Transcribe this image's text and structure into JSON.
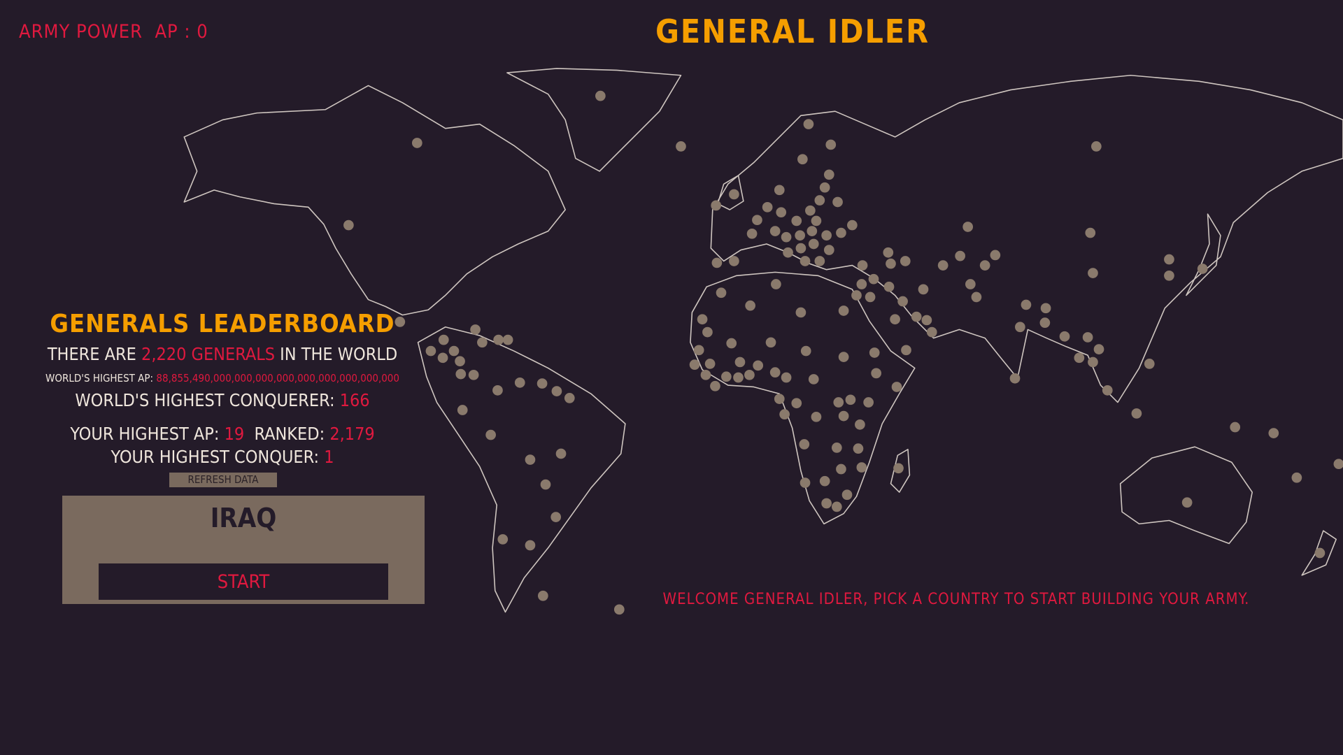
{
  "header": {
    "army_power_label": "ARMY POWER",
    "ap_label": "AP : 0",
    "game_title": "GENERAL IDLER"
  },
  "leaderboard": {
    "title": "GENERALS LEADERBOARD",
    "generals_prefix": "THERE ARE",
    "generals_count": "2,220 GENERALS",
    "generals_suffix": "IN THE WORLD",
    "highest_ap_label": "WORLD'S HIGHEST AP:",
    "highest_ap_value": "88,855,490,000,000,000,000,000,000,000,000,000",
    "highest_conquerer_label": "WORLD'S HIGHEST CONQUERER:",
    "highest_conquerer_value": "166",
    "your_ap_label": "YOUR HIGHEST AP:",
    "your_ap_value": "19",
    "ranked_label": "RANKED:",
    "ranked_value": "2,179",
    "your_conquer_label": "YOUR HIGHEST CONQUER:",
    "your_conquer_value": "1",
    "refresh_label": "REFRESH DATA"
  },
  "selection": {
    "country": "IRAQ",
    "start_label": "START"
  },
  "welcome_message": "WELCOME GENERAL IDLER, PICK A COUNTRY TO START BUILDING YOUR ARMY.",
  "colors": {
    "background": "#241b29",
    "accent_orange": "#f59e00",
    "accent_red": "#e0193f",
    "panel": "#7a6a5e",
    "country_dot": "#8a7a6c",
    "map_outline": "#cfc6c0"
  }
}
